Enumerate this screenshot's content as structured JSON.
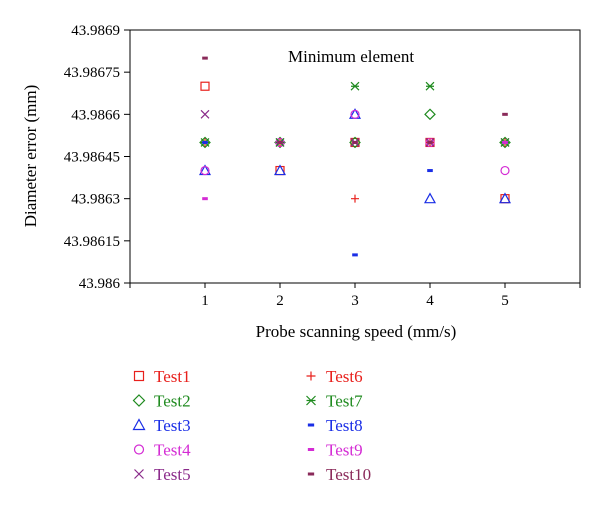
{
  "chart_data": {
    "type": "scatter",
    "title": "",
    "annotation": "Minimum element",
    "xlabel": "Probe scanning speed (mm/s)",
    "ylabel": "Diameter error (mm)",
    "xlim": [
      0,
      6
    ],
    "ylim": [
      43.986,
      43.9869
    ],
    "x_ticks": [
      1,
      2,
      3,
      4,
      5
    ],
    "y_ticks": [
      "43.986",
      "43.98615",
      "43.9863",
      "43.98645",
      "43.9866",
      "43.98675",
      "43.9869"
    ],
    "grid": false,
    "legend_position": "bottom",
    "x": [
      1,
      2,
      3,
      4,
      5
    ],
    "series": [
      {
        "name": "Test1",
        "marker": "square-open",
        "color": "#e8201c",
        "values": [
          43.9867,
          43.9864,
          43.9865,
          43.9865,
          43.9863
        ]
      },
      {
        "name": "Test2",
        "marker": "diamond-open",
        "color": "#1e8a1e",
        "values": [
          43.9865,
          43.9865,
          43.9865,
          43.9866,
          43.9865
        ]
      },
      {
        "name": "Test3",
        "marker": "triangle-open",
        "color": "#1a2ee6",
        "values": [
          43.9864,
          43.9864,
          43.9866,
          43.9863,
          43.9863
        ]
      },
      {
        "name": "Test4",
        "marker": "circle-open",
        "color": "#d42bd4",
        "values": [
          43.9864,
          43.9865,
          43.9866,
          43.9865,
          43.9864
        ]
      },
      {
        "name": "Test5",
        "marker": "x",
        "color": "#8a2a8a",
        "values": [
          43.9866,
          43.9865,
          43.9865,
          43.9865,
          43.9865
        ]
      },
      {
        "name": "Test6",
        "marker": "plus",
        "color": "#e8201c",
        "values": [
          43.9865,
          43.9865,
          43.9863,
          43.9865,
          43.9865
        ]
      },
      {
        "name": "Test7",
        "marker": "star",
        "color": "#1e8a1e",
        "values": [
          43.9865,
          43.9865,
          43.9867,
          43.9867,
          43.9865
        ]
      },
      {
        "name": "Test8",
        "marker": "dash",
        "color": "#1a2ee6",
        "values": [
          43.9865,
          43.9865,
          43.9861,
          43.9864,
          43.9865
        ]
      },
      {
        "name": "Test9",
        "marker": "dash",
        "color": "#d42bd4",
        "values": [
          43.9863,
          43.9865,
          43.9865,
          43.9865,
          43.9865
        ]
      },
      {
        "name": "Test10",
        "marker": "dash",
        "color": "#8a2a5a",
        "values": [
          43.9868,
          43.9865,
          43.9865,
          43.9865,
          43.9866
        ]
      }
    ]
  }
}
